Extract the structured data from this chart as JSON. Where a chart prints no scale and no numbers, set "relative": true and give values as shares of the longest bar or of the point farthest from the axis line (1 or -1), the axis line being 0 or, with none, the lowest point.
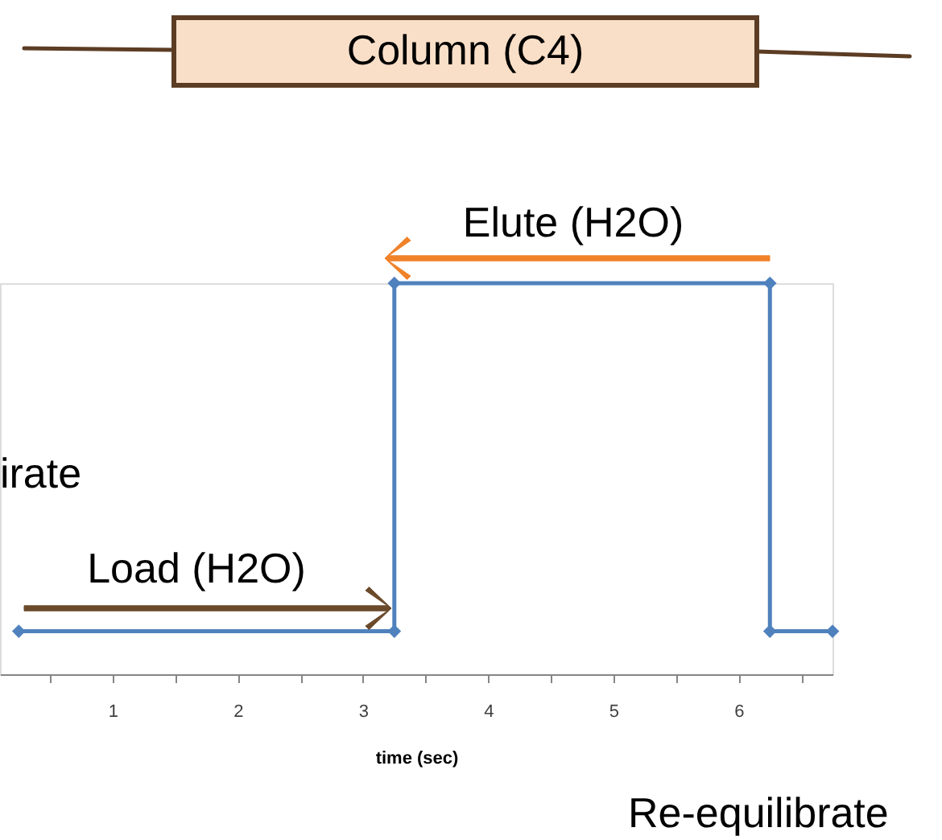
{
  "chart_data": {
    "type": "line",
    "xlabel": "time (sec)",
    "x": [
      0.25,
      3.25,
      3.25,
      6.25,
      6.25,
      6.75
    ],
    "series": [
      {
        "color": "#4f81bd",
        "values": [
          0.11,
          0.11,
          1,
          1,
          0.11,
          0.11
        ]
      }
    ],
    "relative": true,
    "xlim": [
      0.1,
      6.75
    ],
    "xticks": [
      {
        "value": 0.5,
        "label": null
      },
      1,
      {
        "value": 1.5,
        "label": null
      },
      2,
      {
        "value": 2.5,
        "label": null
      },
      3,
      {
        "value": 3.5,
        "label": null
      },
      4,
      {
        "value": 4.5,
        "label": null
      },
      5,
      {
        "value": 5.5,
        "label": null
      },
      6,
      {
        "value": 6.5,
        "label": null
      }
    ],
    "marker": "diamond",
    "line_style": "solid",
    "grid": false,
    "annotations": [
      "Column (C4)",
      "Elute (H2O)",
      "Load (H2O)",
      "irate",
      "Re-equilibrate"
    ]
  }
}
